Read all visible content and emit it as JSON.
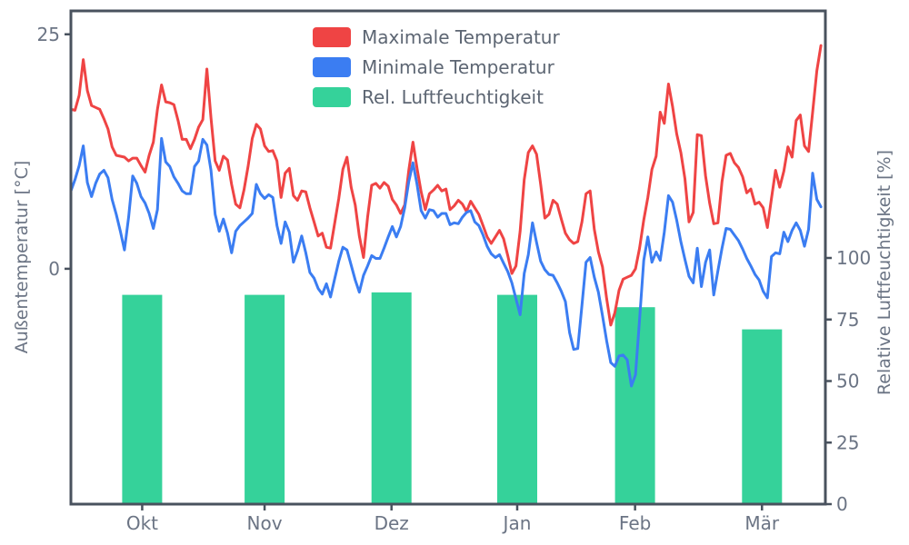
{
  "style": {
    "background": "#ffffff",
    "spine_color": "#49525e",
    "text_color": "#6b7484",
    "legend_text_color": "#5d6673",
    "max_temp_color": "#ef4444",
    "min_temp_color": "#3b7df2",
    "humidity_color": "#35d29a"
  },
  "chart_data": {
    "type": "mixed-line-bar",
    "title": "",
    "x_axis": {
      "tick_labels": [
        "Okt",
        "Nov",
        "Dez",
        "Jan",
        "Feb",
        "Mär"
      ],
      "tick_days": [
        17.3,
        47.0,
        77.8,
        108.3,
        136.9,
        167.7
      ],
      "days_total": 182
    },
    "y_left": {
      "label": "Außentemperatur [°C]",
      "ticks": [
        0,
        25
      ],
      "range": [
        -25.1,
        27.5
      ]
    },
    "y_right": {
      "label": "Relative Luftfeuchtigkeit [%]",
      "ticks": [
        0,
        25,
        50,
        75,
        100
      ],
      "range": [
        0,
        200
      ]
    },
    "legend": [
      {
        "label": "Maximale Temperatur",
        "color": "#ef4444"
      },
      {
        "label": "Minimale Temperatur",
        "color": "#3b7df2"
      },
      {
        "label": "Rel. Luftfeuchtigkeit",
        "color": "#35d29a"
      }
    ],
    "series": [
      {
        "name": "Maximale Temperatur",
        "type": "line",
        "unit": "°C",
        "color": "#ef4444",
        "values": [
          17.0,
          16.9,
          18.5,
          22.3,
          19.0,
          17.4,
          17.2,
          17.0,
          16.0,
          14.9,
          13.0,
          12.1,
          12.0,
          11.9,
          11.5,
          11.8,
          11.8,
          11.0,
          10.3,
          12.1,
          13.5,
          17.0,
          19.6,
          17.8,
          17.7,
          17.5,
          15.8,
          13.8,
          13.8,
          12.8,
          13.8,
          15.1,
          15.9,
          21.3,
          16.1,
          11.5,
          10.5,
          12.0,
          11.6,
          9.0,
          6.9,
          6.5,
          8.4,
          10.9,
          13.9,
          15.4,
          14.9,
          13.1,
          12.5,
          12.6,
          11.5,
          7.6,
          10.2,
          10.7,
          7.8,
          7.3,
          8.3,
          8.2,
          6.5,
          5.0,
          3.5,
          3.8,
          2.3,
          2.2,
          4.8,
          7.5,
          10.6,
          11.9,
          8.7,
          6.8,
          3.5,
          1.2,
          5.5,
          8.9,
          9.1,
          8.6,
          9.2,
          8.8,
          7.4,
          6.8,
          5.9,
          6.8,
          10.5,
          13.5,
          10.7,
          8.2,
          6.3,
          8.0,
          8.4,
          8.9,
          8.3,
          8.5,
          6.3,
          6.7,
          7.3,
          6.9,
          6.1,
          7.2,
          6.5,
          5.8,
          4.6,
          3.4,
          2.7,
          3.4,
          4.1,
          3.2,
          1.4,
          -0.5,
          0.3,
          4.0,
          9.5,
          12.4,
          13.1,
          12.2,
          9.0,
          5.4,
          5.8,
          7.3,
          6.9,
          5.3,
          3.8,
          3.1,
          2.7,
          2.9,
          5.0,
          8.0,
          8.3,
          4.2,
          1.8,
          0.2,
          -3.2,
          -6.0,
          -4.7,
          -2.3,
          -1.1,
          -0.9,
          -0.7,
          0.0,
          2.2,
          5.2,
          7.6,
          10.6,
          12.0,
          16.7,
          15.5,
          19.7,
          17.3,
          14.4,
          12.4,
          9.6,
          5.0,
          6.0,
          14.3,
          14.2,
          9.9,
          7.0,
          4.8,
          4.9,
          9.3,
          12.1,
          12.3,
          11.3,
          10.8,
          9.8,
          8.1,
          8.5,
          6.9,
          7.1,
          6.5,
          4.4,
          7.5,
          10.5,
          8.7,
          10.4,
          13.0,
          11.9,
          15.8,
          16.4,
          13.1,
          12.5,
          16.7,
          21.1,
          23.8
        ]
      },
      {
        "name": "Minimale Temperatur",
        "type": "line",
        "unit": "°C",
        "color": "#3b7df2",
        "values": [
          8.3,
          9.5,
          11.0,
          13.1,
          9.2,
          7.7,
          9.1,
          10.1,
          10.5,
          9.7,
          7.4,
          5.8,
          4.0,
          2.0,
          5.5,
          9.9,
          9.1,
          7.7,
          7.0,
          5.9,
          4.3,
          6.3,
          13.9,
          11.4,
          10.9,
          9.8,
          9.1,
          8.3,
          8.0,
          8.0,
          10.9,
          11.5,
          13.8,
          13.2,
          10.5,
          5.8,
          4.0,
          5.3,
          3.8,
          1.7,
          4.0,
          4.6,
          5.0,
          5.4,
          5.9,
          9.0,
          8.0,
          7.5,
          7.9,
          7.6,
          4.6,
          2.7,
          5.0,
          3.9,
          0.7,
          1.9,
          3.5,
          1.7,
          -0.4,
          -1.0,
          -2.1,
          -2.7,
          -1.6,
          -3.0,
          -1.1,
          0.8,
          2.3,
          2.0,
          0.4,
          -1.2,
          -2.5,
          -0.7,
          0.3,
          1.4,
          1.1,
          1.1,
          2.2,
          3.4,
          4.5,
          3.4,
          4.5,
          6.5,
          9.3,
          11.3,
          9.0,
          6.2,
          5.4,
          6.3,
          6.2,
          5.5,
          5.9,
          5.9,
          4.7,
          4.9,
          4.8,
          5.5,
          6.0,
          6.2,
          5.0,
          4.6,
          3.6,
          2.4,
          1.6,
          1.2,
          1.5,
          0.6,
          -0.3,
          -1.5,
          -3.2,
          -4.9,
          -0.5,
          1.5,
          4.9,
          2.8,
          0.8,
          -0.1,
          -0.6,
          -0.7,
          -1.5,
          -2.4,
          -3.5,
          -6.8,
          -8.6,
          -8.5,
          -3.9,
          0.7,
          1.2,
          -0.9,
          -2.5,
          -5.0,
          -7.7,
          -10.0,
          -10.4,
          -9.3,
          -9.2,
          -9.7,
          -12.5,
          -11.3,
          -5.4,
          0.9,
          3.4,
          0.7,
          1.8,
          0.9,
          3.9,
          7.8,
          7.1,
          5.2,
          2.9,
          1.0,
          -0.8,
          -1.5,
          2.2,
          -1.9,
          0.7,
          2.0,
          -2.8,
          -0.2,
          2.2,
          4.3,
          4.2,
          3.6,
          3.0,
          2.1,
          1.1,
          0.3,
          -0.6,
          -1.2,
          -2.4,
          -3.1,
          1.3,
          1.7,
          1.6,
          3.9,
          2.9,
          4.1,
          4.9,
          4.1,
          2.4,
          4.2,
          10.2,
          7.4,
          6.6
        ]
      },
      {
        "name": "Rel. Luftfeuchtigkeit",
        "type": "bar",
        "unit": "%",
        "color": "#35d29a",
        "categories": [
          "Okt",
          "Nov",
          "Dez",
          "Jan",
          "Feb",
          "Mär"
        ],
        "values": [
          85,
          85,
          86,
          85,
          80,
          71
        ]
      }
    ]
  }
}
